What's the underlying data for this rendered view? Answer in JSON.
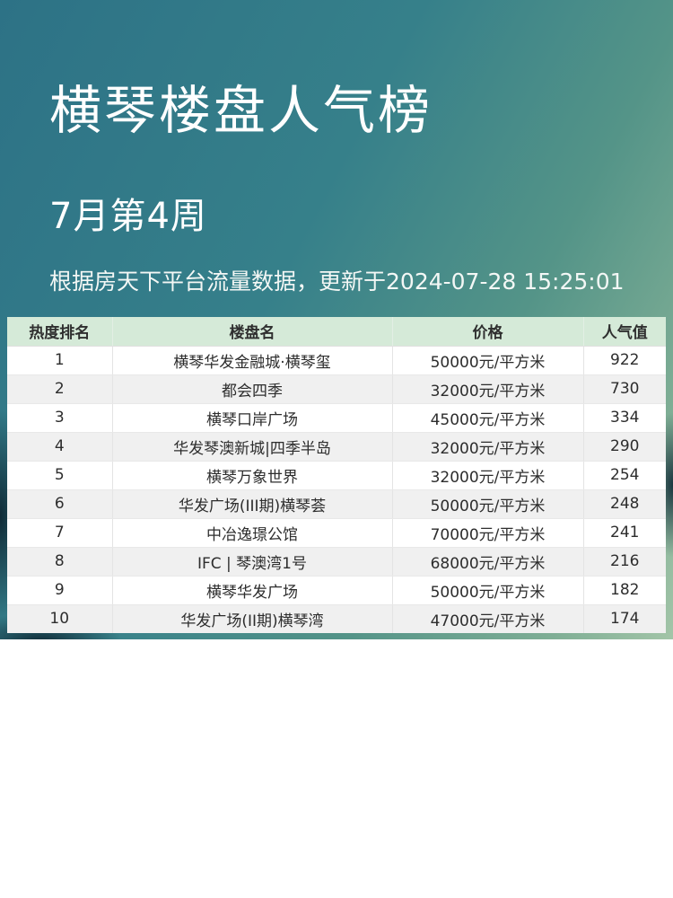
{
  "header": {
    "title": "横琴楼盘人气榜",
    "subtitle": "7月第4周",
    "description": "根据房天下平台流量数据，更新于2024-07-28 15:25:01"
  },
  "chart_data": {
    "type": "table",
    "title": "横琴楼盘人气榜",
    "subtitle": "7月第4周",
    "source_note": "根据房天下平台流量数据，更新于2024-07-28 15:25:01",
    "columns": [
      "热度排名",
      "楼盘名",
      "价格",
      "人气值"
    ],
    "rows": [
      [
        "1",
        "横琴华发金融城·横琴玺",
        "50000元/平方米",
        "922"
      ],
      [
        "2",
        "都会四季",
        "32000元/平方米",
        "730"
      ],
      [
        "3",
        "横琴口岸广场",
        "45000元/平方米",
        "334"
      ],
      [
        "4",
        "华发琴澳新城|四季半岛",
        "32000元/平方米",
        "290"
      ],
      [
        "5",
        "横琴万象世界",
        "32000元/平方米",
        "254"
      ],
      [
        "6",
        "华发广场(III期)横琴荟",
        "50000元/平方米",
        "248"
      ],
      [
        "7",
        "中冶逸璟公馆",
        "70000元/平方米",
        "241"
      ],
      [
        "8",
        "IFC | 琴澳湾1号",
        "68000元/平方米",
        "216"
      ],
      [
        "9",
        "横琴华发广场",
        "50000元/平方米",
        "182"
      ],
      [
        "10",
        "华发广场(II期)横琴湾",
        "47000元/平方米",
        "174"
      ]
    ]
  },
  "colors": {
    "bg_teal_top_left": "#2d7286",
    "bg_teal_top_right": "#3a8589",
    "bg_green_bottom_right": "#a3c5a8",
    "bg_foliage_dark": "#0e2632",
    "table_header_bg": "#d5ead8",
    "row_alt_bg": "#f0f0f0",
    "text_dark": "#2d2d2d",
    "text_white": "#ffffff"
  }
}
